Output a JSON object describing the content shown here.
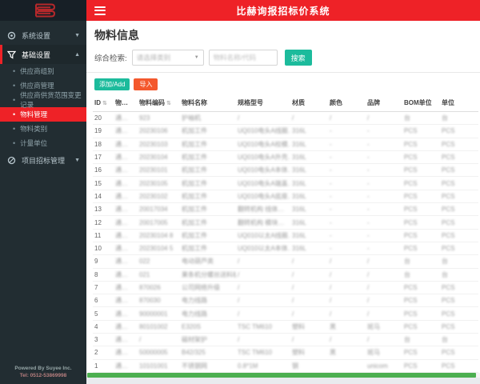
{
  "app": {
    "title": "比赫询报招标价系统"
  },
  "colors": {
    "accent_red": "#ee2227",
    "teal": "#1cbb9c",
    "orange": "#f4582d",
    "green_scrollbar": "#4caf50",
    "sidebar_bg": "#222d32"
  },
  "sidebar": {
    "sections": [
      {
        "label": "系统设置",
        "icon": "gear-icon",
        "state": "collapsed",
        "children": []
      },
      {
        "label": "基础设置",
        "icon": "filter-icon",
        "state": "expanded",
        "children": [
          "供应商组别",
          "供应商管理",
          "供应商供货范围变更记录",
          "物料管理",
          "物料类别",
          "计量单位"
        ],
        "active_child": "物料管理"
      },
      {
        "label": "项目招标管理",
        "icon": "project-icon",
        "state": "collapsed",
        "children": []
      }
    ],
    "footer_line1": "Powered By Suyee Inc.",
    "footer_line2": "Tel: 0512-53869998"
  },
  "page": {
    "title": "物料信息"
  },
  "search": {
    "label": "综合检索:",
    "select_placeholder": "请选择类别",
    "input_placeholder": "物料名称/代码",
    "button_label": "搜索"
  },
  "toolbar": {
    "add_label": "添加/Add",
    "import_label": "导入"
  },
  "table": {
    "headers": [
      "ID",
      "物…",
      "物料编码",
      "物料名称",
      "规格型号",
      "材质",
      "颜色",
      "品牌",
      "BOM单位",
      "单位"
    ],
    "sortable_columns": [
      0,
      2
    ],
    "rows": [
      {
        "id": "20",
        "category": "通…",
        "code": "923",
        "name": "护袖机",
        "spec": "/",
        "material": "/",
        "color": "/",
        "brand": "/",
        "bom_unit": "台",
        "unit": "台"
      },
      {
        "id": "19",
        "category": "通…",
        "code": "20230106",
        "name": "机加工件",
        "spec": "UQ010电头A线圈…",
        "material": "316L",
        "color": "-",
        "brand": "-",
        "bom_unit": "PCS",
        "unit": "PCS"
      },
      {
        "id": "18",
        "category": "通…",
        "code": "20230103",
        "name": "机加工件",
        "spec": "UQ010电头A校模…",
        "material": "316L",
        "color": "-",
        "brand": "-",
        "bom_unit": "PCS",
        "unit": "PCS"
      },
      {
        "id": "17",
        "category": "通…",
        "code": "20230104",
        "name": "机加工件",
        "spec": "UQ010电头A外壳…",
        "material": "316L",
        "color": "-",
        "brand": "-",
        "bom_unit": "PCS",
        "unit": "PCS"
      },
      {
        "id": "16",
        "category": "通…",
        "code": "20230101",
        "name": "机加工件",
        "spec": "UQ010电头A本体…",
        "material": "316L",
        "color": "-",
        "brand": "-",
        "bom_unit": "PCS",
        "unit": "PCS"
      },
      {
        "id": "15",
        "category": "通…",
        "code": "20230105",
        "name": "机加工件",
        "spec": "UQ010电头A端盖…",
        "material": "316L",
        "color": "-",
        "brand": "-",
        "bom_unit": "PCS",
        "unit": "PCS"
      },
      {
        "id": "14",
        "category": "通…",
        "code": "20230102",
        "name": "机加工件",
        "spec": "UQ010电头A底座…",
        "material": "316L",
        "color": "-",
        "brand": "-",
        "bom_unit": "PCS",
        "unit": "PCS"
      },
      {
        "id": "13",
        "category": "通…",
        "code": "20017034",
        "name": "机加工件",
        "spec": "翻转机构 线体…",
        "material": "316L",
        "color": "-",
        "brand": "-",
        "bom_unit": "PCS",
        "unit": "PCS"
      },
      {
        "id": "12",
        "category": "通…",
        "code": "20017005",
        "name": "机加工件",
        "spec": "翻转机构 模块…",
        "material": "316L",
        "color": "-",
        "brand": "-",
        "bom_unit": "PCS",
        "unit": "PCS"
      },
      {
        "id": "11",
        "category": "通…",
        "code": "20230104 8",
        "name": "机加工件",
        "spec": "UQ010以太A线圈…",
        "material": "316L",
        "color": "-",
        "brand": "-",
        "bom_unit": "PCS",
        "unit": "PCS"
      },
      {
        "id": "10",
        "category": "通…",
        "code": "20230104 5",
        "name": "机加工件",
        "spec": "UQ010以太A本体…",
        "material": "316L",
        "color": "-",
        "brand": "-",
        "bom_unit": "PCS",
        "unit": "PCS"
      },
      {
        "id": "9",
        "category": "通…",
        "code": "022",
        "name": "电动葫芦类",
        "spec": "/",
        "material": "/",
        "color": "/",
        "brand": "/",
        "bom_unit": "台",
        "unit": "台"
      },
      {
        "id": "8",
        "category": "通…",
        "code": "021",
        "name": "果条机分螺丝送料机",
        "spec": "/",
        "material": "/",
        "color": "/",
        "brand": "/",
        "bom_unit": "台",
        "unit": "台"
      },
      {
        "id": "7",
        "category": "通…",
        "code": "870026",
        "name": "公司网络升级",
        "spec": "/",
        "material": "/",
        "color": "/",
        "brand": "/",
        "bom_unit": "PCS",
        "unit": "PCS"
      },
      {
        "id": "6",
        "category": "通…",
        "code": "870030",
        "name": "电力线路",
        "spec": "/",
        "material": "/",
        "color": "/",
        "brand": "/",
        "bom_unit": "PCS",
        "unit": "PCS"
      },
      {
        "id": "5",
        "category": "通…",
        "code": "90000001",
        "name": "电力线路",
        "spec": "/",
        "material": "/",
        "color": "/",
        "brand": "/",
        "bom_unit": "PCS",
        "unit": "PCS"
      },
      {
        "id": "4",
        "category": "通…",
        "code": "80101002",
        "name": "E320S",
        "spec": "TSC TM610",
        "material": "塑料",
        "color": "黑",
        "brand": "斑马",
        "bom_unit": "PCS",
        "unit": "PCS"
      },
      {
        "id": "3",
        "category": "通…",
        "code": "/",
        "name": "磁材架护",
        "spec": "/",
        "material": "/",
        "color": "/",
        "brand": "/",
        "bom_unit": "台",
        "unit": "台"
      },
      {
        "id": "2",
        "category": "通…",
        "code": "50000005",
        "name": "B42/325",
        "spec": "TSC TM610",
        "material": "塑料",
        "color": "黑",
        "brand": "斑马",
        "bom_unit": "PCS",
        "unit": "PCS"
      },
      {
        "id": "1",
        "category": "通…",
        "code": "10101001",
        "name": "不锈钢网",
        "spec": "0.8*1M",
        "material": "钢",
        "color": "",
        "brand": "unicom",
        "bom_unit": "PCS",
        "unit": "PCS"
      }
    ]
  }
}
